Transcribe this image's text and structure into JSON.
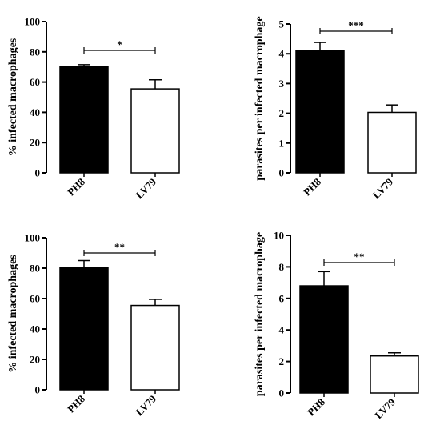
{
  "chart_data": [
    {
      "type": "bar",
      "categories": [
        "PH8",
        "LV79"
      ],
      "values": [
        70,
        55.5
      ],
      "errors": [
        1.5,
        6
      ],
      "ylabel": "% infected macrophages",
      "ylim": [
        0,
        100
      ],
      "yticks": [
        "0",
        "20",
        "40",
        "60",
        "80",
        "100"
      ],
      "significance": "*",
      "bar_colors": [
        "#000000",
        "#ffffff"
      ]
    },
    {
      "type": "bar",
      "categories": [
        "PH8",
        "LV79"
      ],
      "values": [
        4.1,
        2.03
      ],
      "errors": [
        0.28,
        0.25
      ],
      "ylabel": "parasites per infected macrophage",
      "ylim": [
        0,
        5
      ],
      "yticks": [
        "0",
        "1",
        "2",
        "3",
        "4",
        "5"
      ],
      "significance": "***",
      "bar_colors": [
        "#000000",
        "#ffffff"
      ]
    },
    {
      "type": "bar",
      "categories": [
        "PH8",
        "LV79"
      ],
      "values": [
        80.5,
        55.5
      ],
      "errors": [
        4.5,
        4
      ],
      "ylabel": "% infected macrophages",
      "ylim": [
        0,
        100
      ],
      "yticks": [
        "0",
        "20",
        "40",
        "60",
        "80",
        "100"
      ],
      "significance": "**",
      "bar_colors": [
        "#000000",
        "#ffffff"
      ]
    },
    {
      "type": "bar",
      "categories": [
        "PH8",
        "LV79"
      ],
      "values": [
        6.8,
        2.35
      ],
      "errors": [
        0.9,
        0.2
      ],
      "ylabel": "parasites per infected macrophage",
      "ylim": [
        0,
        10
      ],
      "yticks": [
        "0",
        "2",
        "4",
        "6",
        "8",
        "10"
      ],
      "significance": "**",
      "bar_colors": [
        "#000000",
        "#ffffff"
      ]
    }
  ]
}
